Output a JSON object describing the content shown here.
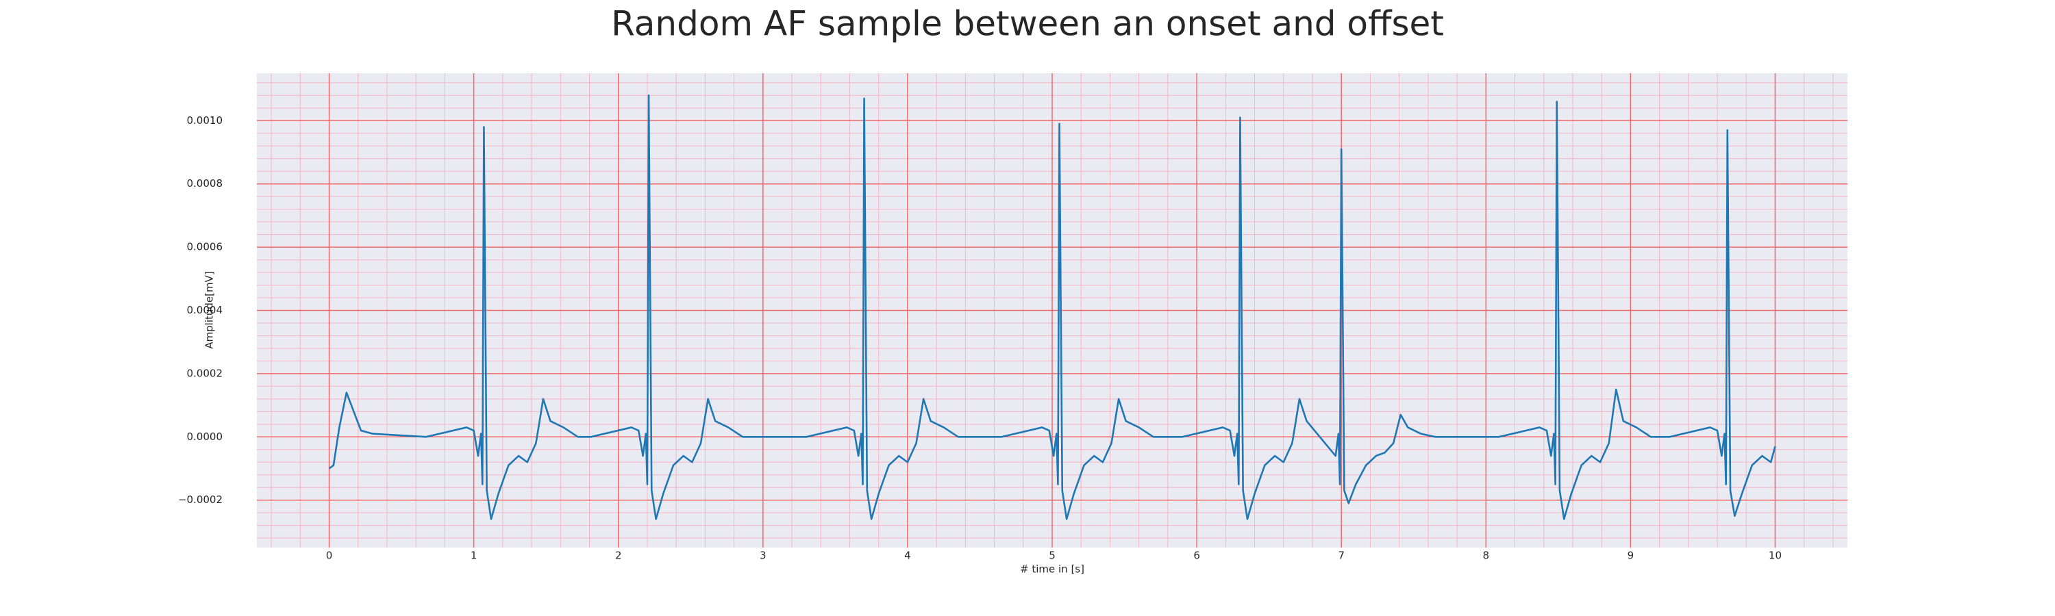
{
  "chart_data": {
    "type": "line",
    "title": "Random AF sample between an onset and offset",
    "xlabel": "# time in [s]",
    "ylabel": "Amplitude[mV]",
    "color": "#1f77b4",
    "grid": true,
    "xlim": [
      -0.5,
      10.5
    ],
    "ylim": [
      -0.00035,
      0.00115
    ],
    "xticks": [
      0,
      1,
      2,
      3,
      4,
      5,
      6,
      7,
      8,
      9,
      10
    ],
    "yticks": [
      {
        "value": -0.0002,
        "label": "−0.0002"
      },
      {
        "value": 0,
        "label": "0.0000"
      },
      {
        "value": 0.0002,
        "label": "0.0002"
      },
      {
        "value": 0.0004,
        "label": "0.0004"
      },
      {
        "value": 0.0006,
        "label": "0.0006"
      },
      {
        "value": 0.0008,
        "label": "0.0008"
      },
      {
        "value": 0.001,
        "label": "0.0010"
      }
    ],
    "xticks_minor": [
      -0.4,
      -0.2,
      0,
      0.2,
      0.4,
      0.6,
      0.8,
      1,
      1.2,
      1.4,
      1.6,
      1.8,
      2,
      2.2,
      2.4,
      2.6,
      2.8,
      3,
      3.2,
      3.4,
      3.6,
      3.8,
      4,
      4.2,
      4.4,
      4.6,
      4.8,
      5,
      5.2,
      5.4,
      5.6,
      5.8,
      6,
      6.2,
      6.4,
      6.6,
      6.8,
      7,
      7.2,
      7.4,
      7.6,
      7.8,
      8,
      8.2,
      8.4,
      8.6,
      8.8,
      9,
      9.2,
      9.4,
      9.6,
      9.8,
      10,
      10.2,
      10.4
    ],
    "yticks_minor": [
      -0.00032,
      -0.00028,
      -0.00024,
      -0.0002,
      -0.00016,
      -0.00012,
      -8e-05,
      -4e-05,
      0,
      4e-05,
      8e-05,
      0.00012,
      0.00016,
      0.0002,
      0.00024,
      0.00028,
      0.00032,
      0.00036,
      0.0004,
      0.00044,
      0.00048,
      0.00052,
      0.00056,
      0.0006,
      0.00064,
      0.00068,
      0.00072,
      0.00076,
      0.0008,
      0.00084,
      0.00088,
      0.00092,
      0.00096,
      0.001,
      0.00104,
      0.00108,
      0.00112
    ],
    "x": [
      0,
      0.03,
      0.07,
      0.12,
      0.17,
      0.22,
      0.3,
      0.67,
      0.95,
      1.0,
      1.03,
      1.05,
      1.06,
      1.07,
      1.09,
      1.12,
      1.17,
      1.24,
      1.31,
      1.37,
      1.43,
      1.48,
      1.53,
      1.62,
      1.72,
      1.81,
      2.09,
      2.14,
      2.17,
      2.19,
      2.2,
      2.21,
      2.23,
      2.26,
      2.31,
      2.38,
      2.45,
      2.51,
      2.57,
      2.62,
      2.67,
      2.76,
      2.86,
      3.3,
      3.58,
      3.63,
      3.66,
      3.68,
      3.69,
      3.7,
      3.72,
      3.75,
      3.8,
      3.87,
      3.94,
      4.0,
      4.06,
      4.11,
      4.16,
      4.25,
      4.35,
      4.65,
      4.93,
      4.98,
      5.01,
      5.03,
      5.04,
      5.05,
      5.07,
      5.1,
      5.15,
      5.22,
      5.29,
      5.35,
      5.41,
      5.46,
      5.51,
      5.6,
      5.7,
      5.9,
      6.18,
      6.23,
      6.26,
      6.28,
      6.29,
      6.3,
      6.32,
      6.35,
      6.4,
      6.47,
      6.54,
      6.6,
      6.66,
      6.71,
      6.76,
      6.96,
      6.98,
      6.99,
      7.0,
      7.02,
      7.05,
      7.1,
      7.17,
      7.24,
      7.3,
      7.36,
      7.41,
      7.46,
      7.55,
      7.65,
      8.09,
      8.37,
      8.42,
      8.45,
      8.47,
      8.48,
      8.49,
      8.51,
      8.54,
      8.59,
      8.66,
      8.73,
      8.79,
      8.85,
      8.9,
      8.95,
      9.04,
      9.14,
      9.27,
      9.55,
      9.6,
      9.63,
      9.65,
      9.66,
      9.67,
      9.69,
      9.72,
      9.77,
      9.84,
      9.91,
      9.97,
      10.0
    ],
    "values": [
      -0.0001,
      -9e-05,
      3e-05,
      0.00014,
      8e-05,
      2e-05,
      1e-05,
      0,
      3e-05,
      2e-05,
      -6e-05,
      1e-05,
      -0.00015,
      0.00098,
      -0.00017,
      -0.00026,
      -0.00018,
      -9e-05,
      -6e-05,
      -8e-05,
      -2e-05,
      0.00012,
      5e-05,
      3e-05,
      0,
      0,
      3e-05,
      2e-05,
      -6e-05,
      1e-05,
      -0.00015,
      0.00108,
      -0.00017,
      -0.00026,
      -0.00018,
      -9e-05,
      -6e-05,
      -8e-05,
      -2e-05,
      0.00012,
      5e-05,
      3e-05,
      0,
      0,
      3e-05,
      2e-05,
      -6e-05,
      1e-05,
      -0.00015,
      0.00107,
      -0.00017,
      -0.00026,
      -0.00018,
      -9e-05,
      -6e-05,
      -8e-05,
      -2e-05,
      0.00012,
      5e-05,
      3e-05,
      0,
      0,
      3e-05,
      2e-05,
      -6e-05,
      1e-05,
      -0.00015,
      0.00099,
      -0.00017,
      -0.00026,
      -0.00018,
      -9e-05,
      -6e-05,
      -8e-05,
      -2e-05,
      0.00012,
      5e-05,
      3e-05,
      0,
      0,
      3e-05,
      2e-05,
      -6e-05,
      1e-05,
      -0.00015,
      0.00101,
      -0.00017,
      -0.00026,
      -0.00018,
      -9e-05,
      -6e-05,
      -8e-05,
      -2e-05,
      0.00012,
      5e-05,
      -6e-05,
      1e-05,
      -0.00015,
      0.00091,
      -0.00017,
      -0.00021,
      -0.00015,
      -9e-05,
      -6e-05,
      -5e-05,
      -2e-05,
      7e-05,
      3e-05,
      1e-05,
      0,
      0,
      3e-05,
      2e-05,
      -6e-05,
      1e-05,
      -0.00015,
      0.00106,
      -0.00017,
      -0.00026,
      -0.00018,
      -9e-05,
      -6e-05,
      -8e-05,
      -2e-05,
      0.00015,
      5e-05,
      3e-05,
      0,
      0,
      3e-05,
      2e-05,
      -6e-05,
      1e-05,
      -0.00015,
      0.00097,
      -0.00017,
      -0.00025,
      -0.00018,
      -9e-05,
      -6e-05,
      -8e-05,
      -3e-05
    ]
  }
}
